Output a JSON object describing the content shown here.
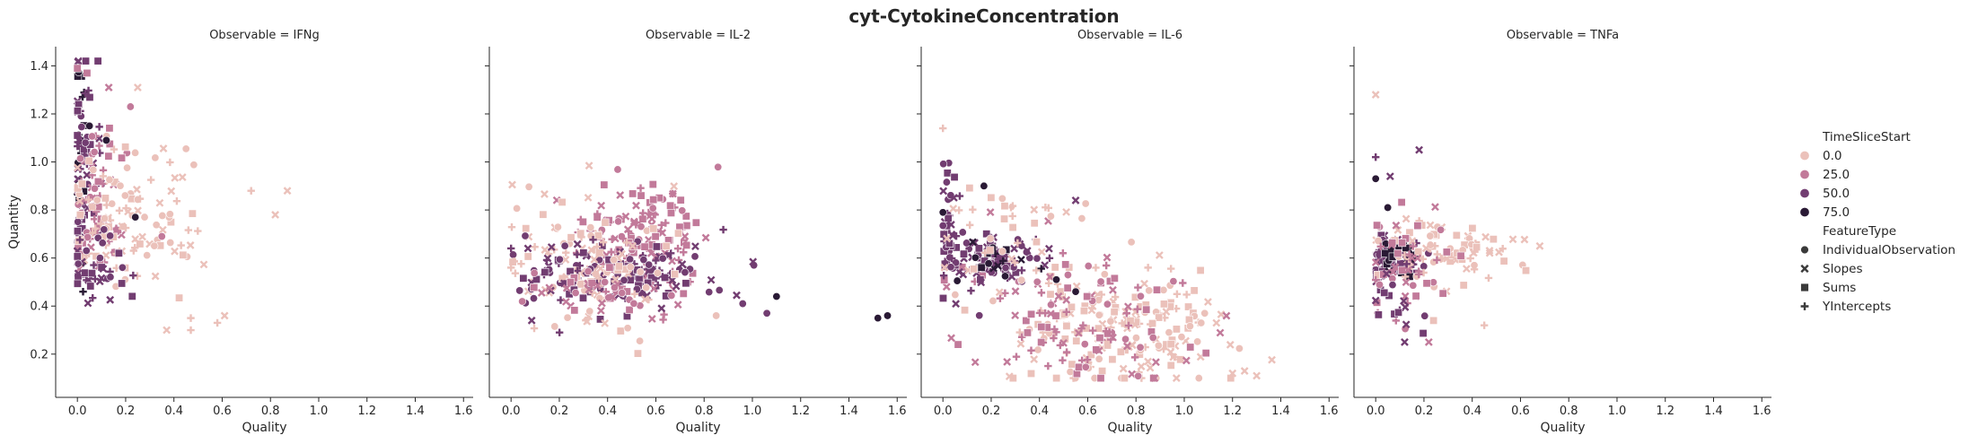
{
  "figure": {
    "title": "cyt-CytokineConcentration"
  },
  "chart_data": {
    "type": "scatter",
    "title": "cyt-CytokineConcentration",
    "xlabel": "Quality",
    "ylabel": "Quantity",
    "xlim": [
      -0.09,
      1.64
    ],
    "ylim": [
      0.02,
      1.48
    ],
    "x_ticks": [
      "0.0",
      "0.2",
      "0.4",
      "0.6",
      "0.8",
      "1.0",
      "1.2",
      "1.4",
      "1.6"
    ],
    "y_ticks": [
      "0.2",
      "0.4",
      "0.6",
      "0.8",
      "1.0",
      "1.2",
      "1.4"
    ],
    "x_tick_values": [
      0,
      0.2,
      0.4,
      0.6,
      0.8,
      1.0,
      1.2,
      1.4,
      1.6
    ],
    "y_tick_values": [
      0.2,
      0.4,
      0.6,
      0.8,
      1.0,
      1.2,
      1.4
    ],
    "grid": false,
    "legend_placement": "right",
    "hue": {
      "title": "TimeSliceStart",
      "levels": [
        {
          "label": "0.0",
          "color": "#ebc1ba"
        },
        {
          "label": "25.0",
          "color": "#c27a9a"
        },
        {
          "label": "50.0",
          "color": "#723d71"
        },
        {
          "label": "75.0",
          "color": "#2a1a35"
        }
      ]
    },
    "style": {
      "title": "FeatureType",
      "levels": [
        {
          "label": "IndividualObservation",
          "marker": "circle"
        },
        {
          "label": "Slopes",
          "marker": "x"
        },
        {
          "label": "Sums",
          "marker": "square"
        },
        {
          "label": "YIntercepts",
          "marker": "plus"
        }
      ]
    },
    "panels": [
      {
        "title": "Observable = IFNg",
        "clusters": [
          {
            "hue": 3,
            "cx": 0.01,
            "cy": 1.0,
            "sx": 0.015,
            "sy": 0.25,
            "n": 25
          },
          {
            "hue": 2,
            "cx": 0.02,
            "cy": 0.95,
            "sx": 0.03,
            "sy": 0.25,
            "n": 70
          },
          {
            "hue": 1,
            "cx": 0.08,
            "cy": 0.82,
            "sx": 0.06,
            "sy": 0.18,
            "n": 70
          },
          {
            "hue": 0,
            "cx": 0.18,
            "cy": 0.78,
            "sx": 0.14,
            "sy": 0.15,
            "n": 110
          },
          {
            "hue": 2,
            "cx": 0.1,
            "cy": 0.55,
            "sx": 0.08,
            "sy": 0.08,
            "n": 35
          }
        ],
        "points": [
          {
            "x": 0.04,
            "y": 1.37,
            "hue": 1,
            "marker": "square"
          },
          {
            "x": 0.0,
            "y": 1.39,
            "hue": 1,
            "marker": "square"
          },
          {
            "x": 0.22,
            "y": 1.23,
            "hue": 1,
            "marker": "circle"
          },
          {
            "x": 0.13,
            "y": 1.31,
            "hue": 1,
            "marker": "x"
          },
          {
            "x": 0.25,
            "y": 1.31,
            "hue": 0,
            "marker": "x"
          },
          {
            "x": 0.12,
            "y": 1.09,
            "hue": 3,
            "marker": "circle"
          },
          {
            "x": 0.05,
            "y": 1.15,
            "hue": 3,
            "marker": "circle"
          },
          {
            "x": 0.24,
            "y": 0.77,
            "hue": 3,
            "marker": "circle"
          },
          {
            "x": 0.87,
            "y": 0.88,
            "hue": 0,
            "marker": "x"
          },
          {
            "x": 0.82,
            "y": 0.78,
            "hue": 0,
            "marker": "x"
          },
          {
            "x": 0.72,
            "y": 0.88,
            "hue": 0,
            "marker": "plus"
          },
          {
            "x": 0.61,
            "y": 0.36,
            "hue": 0,
            "marker": "x"
          },
          {
            "x": 0.47,
            "y": 0.35,
            "hue": 0,
            "marker": "plus"
          },
          {
            "x": 0.37,
            "y": 0.3,
            "hue": 0,
            "marker": "x"
          },
          {
            "x": 0.58,
            "y": 0.33,
            "hue": 0,
            "marker": "plus"
          },
          {
            "x": 0.47,
            "y": 0.3,
            "hue": 0,
            "marker": "plus"
          },
          {
            "x": 0.35,
            "y": 0.69,
            "hue": 1,
            "marker": "circle"
          }
        ]
      },
      {
        "title": "Observable = IL-2",
        "clusters": [
          {
            "hue": 1,
            "cx": 0.56,
            "cy": 0.7,
            "sx": 0.12,
            "sy": 0.1,
            "n": 130
          },
          {
            "hue": 2,
            "cx": 0.5,
            "cy": 0.52,
            "sx": 0.16,
            "sy": 0.07,
            "n": 110
          },
          {
            "hue": 0,
            "cx": 0.3,
            "cy": 0.55,
            "sx": 0.17,
            "sy": 0.14,
            "n": 110
          },
          {
            "hue": 2,
            "cx": 0.2,
            "cy": 0.55,
            "sx": 0.1,
            "sy": 0.08,
            "n": 35
          },
          {
            "hue": 1,
            "cx": 0.4,
            "cy": 0.46,
            "sx": 0.18,
            "sy": 0.05,
            "n": 40
          }
        ],
        "points": [
          {
            "x": 0.96,
            "y": 0.41,
            "hue": 2,
            "marker": "circle"
          },
          {
            "x": 1.06,
            "y": 0.37,
            "hue": 2,
            "marker": "circle"
          },
          {
            "x": 1.1,
            "y": 0.44,
            "hue": 3,
            "marker": "circle"
          },
          {
            "x": 1.52,
            "y": 0.35,
            "hue": 3,
            "marker": "circle"
          },
          {
            "x": 1.56,
            "y": 0.36,
            "hue": 3,
            "marker": "circle"
          },
          {
            "x": 0.85,
            "y": 0.36,
            "hue": 0,
            "marker": "circle"
          },
          {
            "x": 0.0,
            "y": 0.56,
            "hue": 0,
            "marker": "plus"
          },
          {
            "x": 0.0,
            "y": 0.64,
            "hue": 2,
            "marker": "plus"
          },
          {
            "x": 0.07,
            "y": 0.64,
            "hue": 2,
            "marker": "x"
          }
        ]
      },
      {
        "title": "Observable = IL-6",
        "clusters": [
          {
            "hue": 0,
            "cx": 0.72,
            "cy": 0.3,
            "sx": 0.22,
            "sy": 0.13,
            "n": 170
          },
          {
            "hue": 1,
            "cx": 0.55,
            "cy": 0.35,
            "sx": 0.22,
            "sy": 0.14,
            "n": 110
          },
          {
            "hue": 2,
            "cx": 0.18,
            "cy": 0.6,
            "sx": 0.12,
            "sy": 0.06,
            "n": 90
          },
          {
            "hue": 3,
            "cx": 0.22,
            "cy": 0.58,
            "sx": 0.08,
            "sy": 0.04,
            "n": 15
          },
          {
            "hue": 2,
            "cx": 0.02,
            "cy": 0.75,
            "sx": 0.02,
            "sy": 0.2,
            "n": 35
          },
          {
            "hue": 0,
            "cx": 0.3,
            "cy": 0.65,
            "sx": 0.15,
            "sy": 0.12,
            "n": 40
          }
        ],
        "points": [
          {
            "x": 0.0,
            "y": 1.14,
            "hue": 0,
            "marker": "plus"
          },
          {
            "x": 0.0,
            "y": 0.79,
            "hue": 3,
            "marker": "circle"
          },
          {
            "x": 0.17,
            "y": 0.9,
            "hue": 3,
            "marker": "circle"
          },
          {
            "x": 0.47,
            "y": 0.51,
            "hue": 3,
            "marker": "circle"
          },
          {
            "x": 0.55,
            "y": 0.46,
            "hue": 3,
            "marker": "circle"
          },
          {
            "x": 0.55,
            "y": 0.84,
            "hue": 2,
            "marker": "x"
          },
          {
            "x": 1.07,
            "y": 0.33,
            "hue": 0,
            "marker": "circle"
          },
          {
            "x": 1.3,
            "y": 0.11,
            "hue": 0,
            "marker": "x"
          },
          {
            "x": 1.25,
            "y": 0.13,
            "hue": 0,
            "marker": "x"
          },
          {
            "x": 1.2,
            "y": 0.12,
            "hue": 0,
            "marker": "x"
          },
          {
            "x": 0.97,
            "y": 0.45,
            "hue": 0,
            "marker": "plus"
          },
          {
            "x": 0.85,
            "y": 0.56,
            "hue": 0,
            "marker": "plus"
          }
        ]
      },
      {
        "title": "Observable = TNFa",
        "clusters": [
          {
            "hue": 2,
            "cx": 0.07,
            "cy": 0.6,
            "sx": 0.05,
            "sy": 0.05,
            "n": 80
          },
          {
            "hue": 3,
            "cx": 0.1,
            "cy": 0.6,
            "sx": 0.05,
            "sy": 0.04,
            "n": 20
          },
          {
            "hue": 0,
            "cx": 0.3,
            "cy": 0.62,
            "sx": 0.16,
            "sy": 0.07,
            "n": 80
          },
          {
            "hue": 1,
            "cx": 0.12,
            "cy": 0.63,
            "sx": 0.08,
            "sy": 0.12,
            "n": 45
          },
          {
            "hue": 2,
            "cx": 0.1,
            "cy": 0.4,
            "sx": 0.06,
            "sy": 0.06,
            "n": 15
          }
        ],
        "points": [
          {
            "x": 0.0,
            "y": 1.28,
            "hue": 0,
            "marker": "x"
          },
          {
            "x": 0.0,
            "y": 0.93,
            "hue": 3,
            "marker": "circle"
          },
          {
            "x": 0.18,
            "y": 1.05,
            "hue": 2,
            "marker": "x"
          },
          {
            "x": 0.06,
            "y": 0.94,
            "hue": 2,
            "marker": "x"
          },
          {
            "x": 0.12,
            "y": 0.25,
            "hue": 2,
            "marker": "x"
          },
          {
            "x": 0.22,
            "y": 0.25,
            "hue": 1,
            "marker": "x"
          },
          {
            "x": 0.45,
            "y": 0.32,
            "hue": 0,
            "marker": "plus"
          },
          {
            "x": 0.68,
            "y": 0.65,
            "hue": 0,
            "marker": "x"
          },
          {
            "x": 0.0,
            "y": 1.02,
            "hue": 2,
            "marker": "plus"
          },
          {
            "x": 0.05,
            "y": 0.81,
            "hue": 3,
            "marker": "circle"
          }
        ]
      }
    ]
  }
}
